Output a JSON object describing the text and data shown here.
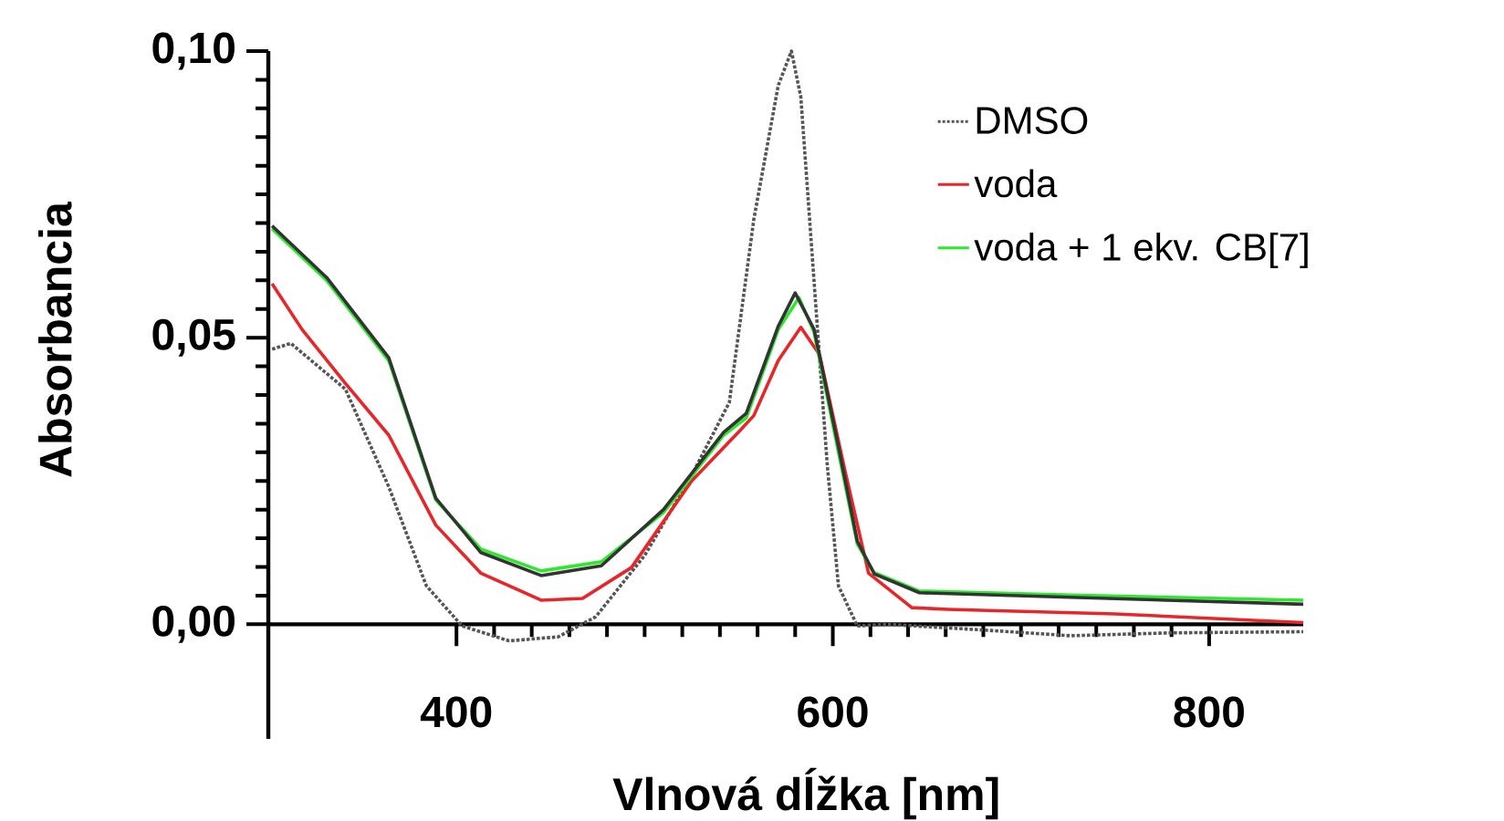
{
  "chart_data": {
    "type": "line",
    "xlabel": "Vlnová dĺžka [nm]",
    "ylabel": "Absorbancia",
    "xlim": [
      300,
      850
    ],
    "ylim": [
      -0.02,
      0.1
    ],
    "xticks": [
      400,
      600,
      800
    ],
    "yticks": [
      {
        "value": 0,
        "label": "0,00"
      },
      {
        "value": 0.05,
        "label": "0,05"
      },
      {
        "value": 0.1,
        "label": "0,10"
      }
    ],
    "legend": "top right",
    "marker": "none",
    "series": [
      {
        "name": "DMSO",
        "color": "#555555",
        "line_style": "dotted",
        "x": [
          302,
          312,
          341,
          364,
          384,
          403,
          428,
          454,
          474,
          500,
          525,
          545,
          558,
          571,
          578,
          583,
          590,
          597,
          603,
          613,
          629,
          680,
          726,
          780,
          850
        ],
        "values": [
          0.048,
          0.049,
          0.041,
          0.024,
          0.0067,
          -0.0003,
          -0.0029,
          -0.0022,
          0.0013,
          0.012,
          0.026,
          0.0387,
          0.0706,
          0.094,
          0.1,
          0.092,
          0.06,
          0.028,
          0.0067,
          -0.0003,
          0.0,
          -0.001,
          -0.002,
          -0.0015,
          -0.0013
        ]
      },
      {
        "name": "voda",
        "color": "#e8262a",
        "line_style": "solid",
        "x": [
          302,
          318,
          341,
          364,
          389,
          413,
          445,
          467,
          493,
          525,
          551,
          558,
          571,
          583,
          593,
          607,
          619,
          642,
          661,
          750,
          850
        ],
        "values": [
          0.0594,
          0.0514,
          0.042,
          0.033,
          0.0173,
          0.0089,
          0.0042,
          0.0045,
          0.0099,
          0.025,
          0.0339,
          0.0364,
          0.046,
          0.0518,
          0.047,
          0.026,
          0.0089,
          0.0029,
          0.0026,
          0.0018,
          0.0003
        ]
      },
      {
        "name": "voda + 1 ekv. CB[7]",
        "color": "#2ee82e",
        "line_style": "solid",
        "x": [
          302,
          331,
          364,
          389,
          413,
          445,
          477,
          510,
          542,
          554,
          571,
          582,
          590,
          603,
          613,
          622,
          646,
          726,
          850
        ],
        "values": [
          0.069,
          0.06,
          0.046,
          0.0217,
          0.0131,
          0.0093,
          0.0109,
          0.0195,
          0.033,
          0.036,
          0.0514,
          0.057,
          0.051,
          0.03,
          0.014,
          0.009,
          0.0058,
          0.0051,
          0.0042
        ]
      },
      {
        "color": "#333333",
        "line_style": "solid",
        "x": [
          302,
          331,
          364,
          389,
          413,
          445,
          477,
          510,
          542,
          554,
          571,
          580,
          590,
          603,
          613,
          622,
          646,
          726,
          850
        ],
        "values": [
          0.0695,
          0.0605,
          0.0465,
          0.022,
          0.0125,
          0.0085,
          0.0102,
          0.02,
          0.0335,
          0.0368,
          0.052,
          0.0578,
          0.0515,
          0.031,
          0.0145,
          0.0088,
          0.0055,
          0.0047,
          0.0035
        ]
      }
    ]
  }
}
